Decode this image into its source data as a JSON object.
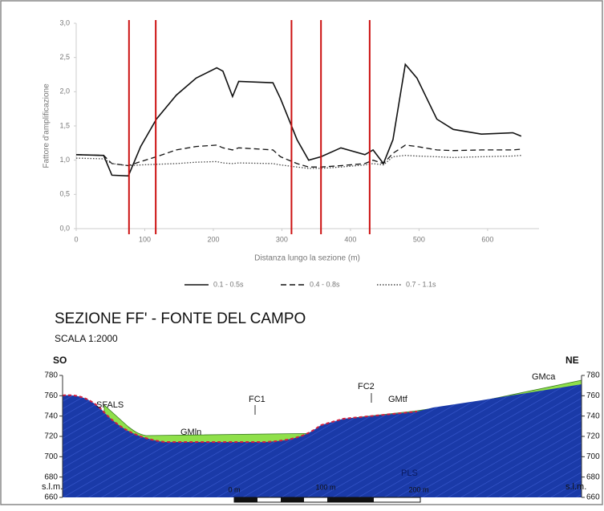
{
  "chart_data": {
    "type": "line",
    "y_label": "Fattore d'amplificazione",
    "x_label": "Distanza lungo la sezione (m)",
    "x": [
      0,
      40,
      52,
      76,
      94,
      117,
      146,
      175,
      205,
      214,
      228,
      237,
      287,
      298,
      322,
      339,
      357,
      386,
      421,
      433,
      448,
      462,
      480,
      497,
      526,
      550,
      591,
      637,
      649
    ],
    "series": [
      {
        "name": "0.1 - 0.5s",
        "color": "#111111",
        "dash": "solid",
        "values": [
          1.08,
          1.07,
          0.78,
          0.77,
          1.2,
          1.6,
          1.95,
          2.2,
          2.35,
          2.3,
          1.93,
          2.15,
          2.13,
          1.9,
          1.3,
          1.0,
          1.05,
          1.18,
          1.08,
          1.15,
          0.95,
          1.3,
          2.4,
          2.2,
          1.6,
          1.45,
          1.38,
          1.4,
          1.35
        ]
      },
      {
        "name": "0.4 - 0.8s",
        "color": "#111111",
        "dash": "dashed",
        "values": [
          1.08,
          1.07,
          0.95,
          0.92,
          0.98,
          1.05,
          1.15,
          1.2,
          1.22,
          1.18,
          1.15,
          1.18,
          1.15,
          1.05,
          0.95,
          0.9,
          0.9,
          0.92,
          0.95,
          1.0,
          0.95,
          1.1,
          1.22,
          1.2,
          1.15,
          1.14,
          1.15,
          1.15,
          1.16
        ]
      },
      {
        "name": "0.7 - 1.1s",
        "color": "#444444",
        "dash": "dotted",
        "values": [
          1.03,
          1.02,
          0.95,
          0.92,
          0.93,
          0.94,
          0.95,
          0.97,
          0.98,
          0.96,
          0.95,
          0.96,
          0.95,
          0.93,
          0.9,
          0.88,
          0.88,
          0.9,
          0.93,
          0.95,
          0.93,
          1.05,
          1.07,
          1.06,
          1.05,
          1.04,
          1.05,
          1.06,
          1.07
        ]
      }
    ],
    "vlines": [
      77,
      116,
      314,
      357,
      428
    ],
    "vline_color": "#cc1111",
    "xlim": [
      0,
      675
    ],
    "xticks": [
      0,
      100,
      200,
      300,
      400,
      500,
      600
    ],
    "ylim": [
      0,
      3
    ],
    "yticks": [
      {
        "value": 0,
        "label": "0,0"
      },
      {
        "value": 0.5,
        "label": "0,5"
      },
      {
        "value": 1,
        "label": "1,0"
      },
      {
        "value": 1.5,
        "label": "1,5"
      },
      {
        "value": 2,
        "label": "2,0"
      },
      {
        "value": 2.5,
        "label": "2,5"
      },
      {
        "value": 3,
        "label": "3,0"
      }
    ],
    "legend": "bottom"
  },
  "section": {
    "title": "SEZIONE FF' - FONTE DEL CAMPO",
    "scale": "SCALA 1:2000",
    "left_label": "SO",
    "right_label": "NE",
    "elevation_lim": [
      660,
      780
    ],
    "elevation_ticks": [
      660,
      680,
      700,
      720,
      740,
      760,
      780
    ],
    "labels": [
      "SFALS",
      "FC1",
      "FC2",
      "GMtf",
      "GMca",
      "GMln",
      "PLS"
    ],
    "datum_left": "s.l.m.",
    "datum_right": "s.l.m.",
    "scale_bar": [
      "0 m",
      "100 m",
      "200 m"
    ]
  }
}
